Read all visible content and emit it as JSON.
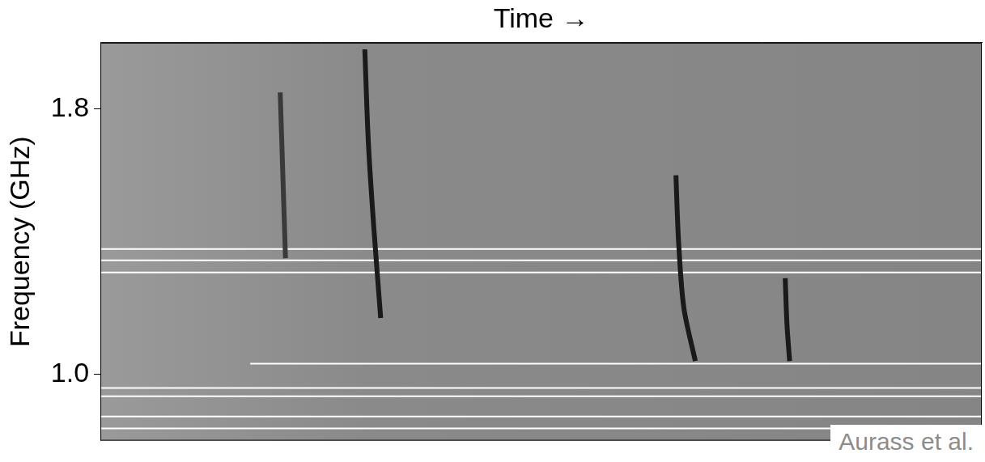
{
  "chart_data": {
    "type": "line",
    "x_label": "Time →",
    "y_label": "Frequency (GHz)",
    "xlim": [
      0,
      100
    ],
    "ylim": [
      0.8,
      2.0
    ],
    "yticks": [
      {
        "value": 1,
        "label": "1.0"
      },
      1.8
    ],
    "grid": false,
    "tick_labels": "y",
    "annotations": [
      {
        "text": "Aurass et al."
      }
    ],
    "series": [
      {
        "color": "#3a3a3a",
        "line_style": "solid",
        "x": [
          20.4,
          20.7,
          21.0
        ],
        "values": [
          1.85,
          1.6,
          1.35
        ]
      },
      {
        "color": "#1a1a1a",
        "line_style": "solid",
        "x": [
          30.0,
          30.4,
          31.0,
          31.8
        ],
        "values": [
          1.98,
          1.7,
          1.45,
          1.17
        ]
      },
      {
        "color": "#1a1a1a",
        "line_style": "solid",
        "x": [
          65.3,
          65.6,
          66.2,
          67.5
        ],
        "values": [
          1.6,
          1.4,
          1.2,
          1.04
        ]
      },
      {
        "color": "#1a1a1a",
        "line_style": "solid",
        "x": [
          77.7,
          77.9,
          78.2
        ],
        "values": [
          1.29,
          1.15,
          1.04
        ]
      },
      {
        "color": "#ffffff",
        "line_style": "solid",
        "x": [
          0,
          100
        ],
        "values": [
          1.378,
          1.378
        ]
      },
      {
        "color": "#ffffff",
        "line_style": "solid",
        "x": [
          0,
          100
        ],
        "values": [
          1.344,
          1.344
        ]
      },
      {
        "color": "#ffffff",
        "line_style": "solid",
        "x": [
          0,
          100
        ],
        "values": [
          1.307,
          1.307
        ]
      },
      {
        "color": "#ffffff",
        "line_style": "solid",
        "x": [
          17,
          100
        ],
        "values": [
          1.032,
          1.032
        ]
      },
      {
        "color": "#ffffff",
        "line_style": "solid",
        "x": [
          0,
          100
        ],
        "values": [
          0.959,
          0.959
        ]
      },
      {
        "color": "#ffffff",
        "line_style": "solid",
        "x": [
          0,
          100
        ],
        "values": [
          0.934,
          0.934
        ]
      },
      {
        "color": "#ffffff",
        "line_style": "solid",
        "x": [
          0,
          100
        ],
        "values": [
          0.873,
          0.873
        ]
      },
      {
        "color": "#ffffff",
        "line_style": "solid",
        "x": [
          0,
          100
        ],
        "values": [
          0.837,
          0.837
        ]
      }
    ]
  }
}
